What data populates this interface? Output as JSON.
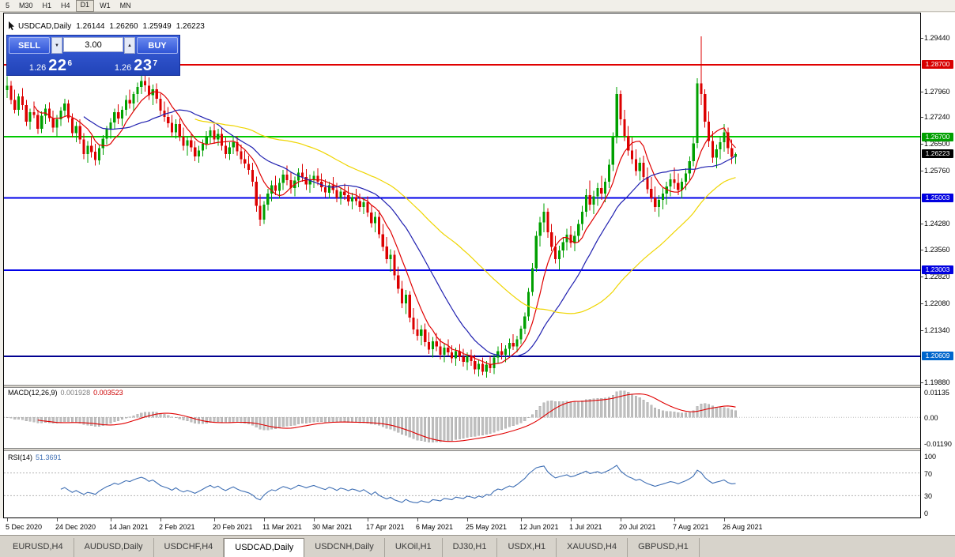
{
  "toolbar": {
    "timeframes": [
      {
        "label": "5"
      },
      {
        "label": "M30"
      },
      {
        "label": "H1"
      },
      {
        "label": "H4"
      },
      {
        "label": "D1",
        "active": true
      },
      {
        "label": "W1"
      },
      {
        "label": "MN"
      }
    ]
  },
  "chart_title": {
    "symbol": "USDCAD,Daily",
    "open": "1.26144",
    "high": "1.26260",
    "low": "1.25949",
    "close": "1.26223"
  },
  "trade_panel": {
    "sell_label": "SELL",
    "buy_label": "BUY",
    "lots": "3.00",
    "lot_down_icon": "▼",
    "lot_up_icon": "▲",
    "sell_price": {
      "prefix": "1.26",
      "big": "22",
      "sup": "6"
    },
    "buy_price": {
      "prefix": "1.26",
      "big": "23",
      "sup": "7"
    }
  },
  "macd": {
    "label": "MACD(12,26,9)",
    "value_main": "0.001928",
    "value_signal": "0.003523",
    "scale": {
      "top": "0.01135",
      "zero": "0.00",
      "bottom": "-0.01190"
    },
    "range": {
      "max": 0.01135,
      "min": -0.0119
    },
    "colors": {
      "histogram": "#bfbfbf",
      "histogram_edge": "#a6a6a6",
      "signal": "#e00000"
    },
    "params": {
      "fast": 12,
      "slow": 26,
      "signal": 9
    }
  },
  "rsi": {
    "label": "RSI(14)",
    "value": "51.3691",
    "period": 14,
    "scale": [
      "100",
      "70",
      "30",
      "0"
    ],
    "levels": [
      70,
      30
    ],
    "color": "#3f6fb4"
  },
  "tabs": {
    "items": [
      "EURUSD,H4",
      "AUDUSD,Daily",
      "USDCHF,H4",
      "USDCAD,Daily",
      "USDCNH,Daily",
      "UKOil,H1",
      "DJ30,H1",
      "USDX,H1",
      "XAUUSD,H4",
      "GBPUSD,H1"
    ],
    "active_index": 3
  },
  "chart_data": {
    "type": "candlestick",
    "symbol": "USDCAD",
    "timeframe": "Daily",
    "colors": {
      "up": "#00a000",
      "down": "#dc0000",
      "background": "#ffffff"
    },
    "y_axis": {
      "min": 1.1982,
      "max": 1.3012,
      "ticks": [
        "1.29440",
        "1.27960",
        "1.27240",
        "1.26500",
        "1.25760",
        "1.24280",
        "1.23560",
        "1.22820",
        "1.22080",
        "1.21340",
        "1.19880"
      ]
    },
    "price_badges": [
      {
        "text": "1.28700",
        "price": 1.287,
        "color": "#d80000"
      },
      {
        "text": "1.26700",
        "price": 1.267,
        "color": "#00a000"
      },
      {
        "text": "1.26223",
        "price": 1.26223,
        "color": "#000000"
      },
      {
        "text": "1.25003",
        "price": 1.25003,
        "color": "#0000e0"
      },
      {
        "text": "1.23003",
        "price": 1.23003,
        "color": "#0000e0"
      },
      {
        "text": "1.20609",
        "price": 1.20609,
        "color": "#0066cc"
      }
    ],
    "h_lines": [
      {
        "price": 1.287,
        "color": "#e00000",
        "width": 2
      },
      {
        "price": 1.267,
        "color": "#00c800",
        "width": 2
      },
      {
        "price": 1.25003,
        "color": "#0000e8",
        "width": 2
      },
      {
        "price": 1.23003,
        "color": "#0000e8",
        "width": 2
      },
      {
        "price": 1.20609,
        "color": "#000090",
        "width": 2
      }
    ],
    "moving_averages": [
      {
        "period": 8,
        "color": "#e00000"
      },
      {
        "period": 21,
        "color": "#2020b0"
      },
      {
        "period": 50,
        "color": "#efd500"
      }
    ],
    "x_labels": [
      {
        "text": "5 Dec 2020",
        "bar": 0
      },
      {
        "text": "24 Dec 2020",
        "bar": 13
      },
      {
        "text": "14 Jan 2021",
        "bar": 27
      },
      {
        "text": "2 Feb 2021",
        "bar": 40
      },
      {
        "text": "20 Feb 2021",
        "bar": 54
      },
      {
        "text": "11 Mar 2021",
        "bar": 67
      },
      {
        "text": "30 Mar 2021",
        "bar": 80
      },
      {
        "text": "17 Apr 2021",
        "bar": 94
      },
      {
        "text": "6 May 2021",
        "bar": 107
      },
      {
        "text": "25 May 2021",
        "bar": 120
      },
      {
        "text": "12 Jun 2021",
        "bar": 134
      },
      {
        "text": "1 Jul 2021",
        "bar": 147
      },
      {
        "text": "20 Jul 2021",
        "bar": 160
      },
      {
        "text": "7 Aug 2021",
        "bar": 174
      },
      {
        "text": "26 Aug 2021",
        "bar": 187
      }
    ],
    "candles": [
      [
        1.28,
        1.2838,
        1.2778,
        1.2812
      ],
      [
        1.2812,
        1.2825,
        1.276,
        1.2772
      ],
      [
        1.2772,
        1.28,
        1.2735,
        1.2745
      ],
      [
        1.2745,
        1.279,
        1.2728,
        1.2782
      ],
      [
        1.2782,
        1.2805,
        1.2745,
        1.2758
      ],
      [
        1.2758,
        1.2772,
        1.27,
        1.2712
      ],
      [
        1.2712,
        1.2748,
        1.269,
        1.2738
      ],
      [
        1.2738,
        1.2768,
        1.2722,
        1.273
      ],
      [
        1.273,
        1.2745,
        1.2678,
        1.2692
      ],
      [
        1.2692,
        1.274,
        1.268,
        1.2728
      ],
      [
        1.2728,
        1.276,
        1.2705,
        1.2748
      ],
      [
        1.2748,
        1.2765,
        1.2712,
        1.2722
      ],
      [
        1.2722,
        1.2742,
        1.2682,
        1.2695
      ],
      [
        1.2695,
        1.273,
        1.267,
        1.2718
      ],
      [
        1.2718,
        1.2752,
        1.27,
        1.2742
      ],
      [
        1.2742,
        1.2775,
        1.2725,
        1.2762
      ],
      [
        1.2762,
        1.2772,
        1.271,
        1.2722
      ],
      [
        1.2722,
        1.2735,
        1.2668,
        1.268
      ],
      [
        1.268,
        1.2712,
        1.2655,
        1.27
      ],
      [
        1.27,
        1.2718,
        1.265,
        1.2662
      ],
      [
        1.2662,
        1.268,
        1.2608,
        1.2622
      ],
      [
        1.2622,
        1.2658,
        1.2598,
        1.2645
      ],
      [
        1.2645,
        1.2672,
        1.2612,
        1.2628
      ],
      [
        1.2628,
        1.265,
        1.259,
        1.2605
      ],
      [
        1.2605,
        1.2648,
        1.2592,
        1.2638
      ],
      [
        1.2638,
        1.2675,
        1.262,
        1.2665
      ],
      [
        1.2665,
        1.27,
        1.2648,
        1.2692
      ],
      [
        1.2692,
        1.2722,
        1.2665,
        1.271
      ],
      [
        1.271,
        1.2748,
        1.2692,
        1.2738
      ],
      [
        1.2738,
        1.276,
        1.2705,
        1.272
      ],
      [
        1.272,
        1.2755,
        1.27,
        1.2745
      ],
      [
        1.2745,
        1.2785,
        1.2728,
        1.2772
      ],
      [
        1.2772,
        1.28,
        1.2748,
        1.2762
      ],
      [
        1.2762,
        1.2795,
        1.274,
        1.2788
      ],
      [
        1.2788,
        1.282,
        1.2765,
        1.2808
      ],
      [
        1.2808,
        1.284,
        1.2788,
        1.2825
      ],
      [
        1.2825,
        1.2848,
        1.2795,
        1.2812
      ],
      [
        1.2812,
        1.2835,
        1.2772,
        1.2785
      ],
      [
        1.2785,
        1.2815,
        1.2758,
        1.2802
      ],
      [
        1.2802,
        1.2818,
        1.2762,
        1.2775
      ],
      [
        1.2775,
        1.279,
        1.273,
        1.2742
      ],
      [
        1.2742,
        1.2768,
        1.2712,
        1.2725
      ],
      [
        1.2725,
        1.2752,
        1.2695,
        1.2708
      ],
      [
        1.2708,
        1.273,
        1.267,
        1.2682
      ],
      [
        1.2682,
        1.2718,
        1.2665,
        1.2705
      ],
      [
        1.2705,
        1.272,
        1.2658,
        1.267
      ],
      [
        1.267,
        1.2695,
        1.2632,
        1.2645
      ],
      [
        1.2645,
        1.2672,
        1.2618,
        1.266
      ],
      [
        1.266,
        1.268,
        1.2628,
        1.264
      ],
      [
        1.264,
        1.2658,
        1.2602,
        1.2615
      ],
      [
        1.2615,
        1.2645,
        1.2598,
        1.2632
      ],
      [
        1.2632,
        1.2662,
        1.2615,
        1.265
      ],
      [
        1.265,
        1.2685,
        1.2635,
        1.2672
      ],
      [
        1.2672,
        1.2698,
        1.2652,
        1.2688
      ],
      [
        1.2688,
        1.2705,
        1.265,
        1.2662
      ],
      [
        1.2662,
        1.2692,
        1.2645,
        1.2678
      ],
      [
        1.2678,
        1.2695,
        1.2632,
        1.2645
      ],
      [
        1.2645,
        1.2668,
        1.261,
        1.2622
      ],
      [
        1.2622,
        1.2655,
        1.2605,
        1.264
      ],
      [
        1.264,
        1.2668,
        1.2622,
        1.2655
      ],
      [
        1.2655,
        1.2672,
        1.2618,
        1.263
      ],
      [
        1.263,
        1.2648,
        1.2595,
        1.2608
      ],
      [
        1.2608,
        1.2632,
        1.2582,
        1.2595
      ],
      [
        1.2595,
        1.2618,
        1.2565,
        1.2578
      ],
      [
        1.2578,
        1.2598,
        1.2532,
        1.2545
      ],
      [
        1.2545,
        1.256,
        1.2462,
        1.2478
      ],
      [
        1.2478,
        1.251,
        1.2422,
        1.244
      ],
      [
        1.244,
        1.2492,
        1.2428,
        1.2482
      ],
      [
        1.2482,
        1.2525,
        1.2465,
        1.2512
      ],
      [
        1.2512,
        1.2548,
        1.249,
        1.2535
      ],
      [
        1.2535,
        1.2562,
        1.2508,
        1.252
      ],
      [
        1.252,
        1.2555,
        1.2498,
        1.2542
      ],
      [
        1.2542,
        1.2578,
        1.2522,
        1.2565
      ],
      [
        1.2565,
        1.259,
        1.2535,
        1.255
      ],
      [
        1.255,
        1.2572,
        1.2512,
        1.2528
      ],
      [
        1.2528,
        1.256,
        1.2505,
        1.2548
      ],
      [
        1.2548,
        1.2582,
        1.253,
        1.257
      ],
      [
        1.257,
        1.2595,
        1.2545,
        1.2558
      ],
      [
        1.2558,
        1.258,
        1.2522,
        1.2538
      ],
      [
        1.2538,
        1.2565,
        1.2515,
        1.2552
      ],
      [
        1.2552,
        1.2575,
        1.2528,
        1.2562
      ],
      [
        1.2562,
        1.2582,
        1.2535,
        1.2545
      ],
      [
        1.2545,
        1.2568,
        1.2518,
        1.253
      ],
      [
        1.253,
        1.2552,
        1.2502,
        1.2515
      ],
      [
        1.2515,
        1.2545,
        1.2498,
        1.2535
      ],
      [
        1.2535,
        1.2558,
        1.2512,
        1.2522
      ],
      [
        1.2522,
        1.2542,
        1.2488,
        1.25
      ],
      [
        1.25,
        1.2528,
        1.2482,
        1.2518
      ],
      [
        1.2518,
        1.254,
        1.2495,
        1.2508
      ],
      [
        1.2508,
        1.2532,
        1.2478,
        1.249
      ],
      [
        1.249,
        1.2515,
        1.2468,
        1.2502
      ],
      [
        1.2502,
        1.2525,
        1.248,
        1.2492
      ],
      [
        1.2492,
        1.2512,
        1.2462,
        1.2475
      ],
      [
        1.2475,
        1.2502,
        1.2455,
        1.2488
      ],
      [
        1.2488,
        1.2505,
        1.2448,
        1.246
      ],
      [
        1.246,
        1.2482,
        1.2418,
        1.243
      ],
      [
        1.243,
        1.2462,
        1.2405,
        1.2448
      ],
      [
        1.2448,
        1.2465,
        1.2388,
        1.24
      ],
      [
        1.24,
        1.2428,
        1.2352,
        1.2365
      ],
      [
        1.2365,
        1.2392,
        1.2318,
        1.233
      ],
      [
        1.233,
        1.2358,
        1.2295,
        1.2342
      ],
      [
        1.2342,
        1.2355,
        1.2272,
        1.2285
      ],
      [
        1.2285,
        1.231,
        1.2235,
        1.2248
      ],
      [
        1.2248,
        1.227,
        1.2195,
        1.2208
      ],
      [
        1.2208,
        1.2245,
        1.2178,
        1.2232
      ],
      [
        1.2232,
        1.2242,
        1.2155,
        1.2168
      ],
      [
        1.2168,
        1.2195,
        1.2122,
        1.2135
      ],
      [
        1.2135,
        1.2165,
        1.2105,
        1.2118
      ],
      [
        1.2118,
        1.2148,
        1.2092,
        1.2135
      ],
      [
        1.2135,
        1.2152,
        1.2088,
        1.21
      ],
      [
        1.21,
        1.2128,
        1.2068,
        1.208
      ],
      [
        1.208,
        1.2115,
        1.2058,
        1.2102
      ],
      [
        1.2102,
        1.2125,
        1.2075,
        1.2088
      ],
      [
        1.2088,
        1.211,
        1.2052,
        1.2065
      ],
      [
        1.2065,
        1.2098,
        1.2045,
        1.2085
      ],
      [
        1.2085,
        1.2108,
        1.2062,
        1.2072
      ],
      [
        1.2072,
        1.2092,
        1.2042,
        1.2055
      ],
      [
        1.2055,
        1.2085,
        1.2035,
        1.2075
      ],
      [
        1.2075,
        1.2095,
        1.2048,
        1.206
      ],
      [
        1.206,
        1.2082,
        1.2032,
        1.2045
      ],
      [
        1.2045,
        1.2072,
        1.2022,
        1.2062
      ],
      [
        1.2062,
        1.208,
        1.2035,
        1.2048
      ],
      [
        1.2048,
        1.2065,
        1.2012,
        1.2025
      ],
      [
        1.2025,
        1.2052,
        1.2005,
        1.204
      ],
      [
        1.204,
        1.2058,
        1.2008,
        1.2018
      ],
      [
        1.2018,
        1.2048,
        1.2002,
        1.2038
      ],
      [
        1.2038,
        1.2062,
        1.2015,
        1.2028
      ],
      [
        1.2028,
        1.2068,
        1.2012,
        1.2058
      ],
      [
        1.2058,
        1.2088,
        1.2042,
        1.2075
      ],
      [
        1.2075,
        1.2098,
        1.2052,
        1.2065
      ],
      [
        1.2065,
        1.2092,
        1.2045,
        1.2082
      ],
      [
        1.2082,
        1.211,
        1.2062,
        1.2098
      ],
      [
        1.2098,
        1.2122,
        1.2078,
        1.2088
      ],
      [
        1.2088,
        1.2118,
        1.2072,
        1.2108
      ],
      [
        1.2108,
        1.2145,
        1.2095,
        1.2138
      ],
      [
        1.2138,
        1.2182,
        1.2122,
        1.2172
      ],
      [
        1.2172,
        1.225,
        1.216,
        1.224
      ],
      [
        1.224,
        1.232,
        1.2228,
        1.2305
      ],
      [
        1.2305,
        1.2408,
        1.2295,
        1.2395
      ],
      [
        1.2395,
        1.2448,
        1.2365,
        1.2432
      ],
      [
        1.2432,
        1.2485,
        1.2405,
        1.2462
      ],
      [
        1.2462,
        1.2472,
        1.239,
        1.2405
      ],
      [
        1.2405,
        1.2428,
        1.2352,
        1.2365
      ],
      [
        1.2365,
        1.2395,
        1.2318,
        1.233
      ],
      [
        1.233,
        1.2368,
        1.2302,
        1.2355
      ],
      [
        1.2355,
        1.2392,
        1.2335,
        1.2378
      ],
      [
        1.2378,
        1.2415,
        1.2355,
        1.2398
      ],
      [
        1.2398,
        1.2422,
        1.2362,
        1.2375
      ],
      [
        1.2375,
        1.2408,
        1.2352,
        1.2395
      ],
      [
        1.2395,
        1.244,
        1.2378,
        1.2428
      ],
      [
        1.2428,
        1.2478,
        1.241,
        1.2462
      ],
      [
        1.2462,
        1.2525,
        1.2448,
        1.2508
      ],
      [
        1.2508,
        1.2548,
        1.2465,
        1.2482
      ],
      [
        1.2482,
        1.252,
        1.2455,
        1.2505
      ],
      [
        1.2505,
        1.2542,
        1.2478,
        1.2528
      ],
      [
        1.2528,
        1.2562,
        1.2495,
        1.2512
      ],
      [
        1.2512,
        1.2555,
        1.2488,
        1.2545
      ],
      [
        1.2545,
        1.2608,
        1.2528,
        1.2592
      ],
      [
        1.2592,
        1.2682,
        1.2575,
        1.2668
      ],
      [
        1.2668,
        1.2808,
        1.2652,
        1.2788
      ],
      [
        1.2788,
        1.2798,
        1.2702,
        1.2718
      ],
      [
        1.2718,
        1.2745,
        1.2658,
        1.2672
      ],
      [
        1.2672,
        1.27,
        1.2618,
        1.2632
      ],
      [
        1.2632,
        1.2668,
        1.2595,
        1.2608
      ],
      [
        1.2608,
        1.2635,
        1.2562,
        1.2575
      ],
      [
        1.2575,
        1.2612,
        1.2548,
        1.2598
      ],
      [
        1.2598,
        1.2618,
        1.2545,
        1.2558
      ],
      [
        1.2558,
        1.2585,
        1.2512,
        1.2525
      ],
      [
        1.2525,
        1.2558,
        1.2488,
        1.25
      ],
      [
        1.25,
        1.2532,
        1.2462,
        1.2475
      ],
      [
        1.2475,
        1.2508,
        1.2448,
        1.2495
      ],
      [
        1.2495,
        1.2528,
        1.2468,
        1.2512
      ],
      [
        1.2512,
        1.2545,
        1.2482,
        1.2532
      ],
      [
        1.2532,
        1.2568,
        1.2505,
        1.2552
      ],
      [
        1.2552,
        1.2585,
        1.2525,
        1.2542
      ],
      [
        1.2542,
        1.2568,
        1.2508,
        1.2522
      ],
      [
        1.2522,
        1.2555,
        1.2498,
        1.2545
      ],
      [
        1.2545,
        1.2582,
        1.2522,
        1.2568
      ],
      [
        1.2568,
        1.2615,
        1.2548,
        1.2602
      ],
      [
        1.2602,
        1.2668,
        1.2588,
        1.2652
      ],
      [
        1.2652,
        1.2832,
        1.2638,
        1.2818
      ],
      [
        1.2818,
        1.2948,
        1.2758,
        1.2788
      ],
      [
        1.2788,
        1.2802,
        1.2695,
        1.2712
      ],
      [
        1.2712,
        1.274,
        1.2642,
        1.2658
      ],
      [
        1.2658,
        1.2685,
        1.2598,
        1.2612
      ],
      [
        1.2612,
        1.2648,
        1.2582,
        1.2635
      ],
      [
        1.2635,
        1.2672,
        1.2608,
        1.2655
      ],
      [
        1.2655,
        1.2705,
        1.2628,
        1.2682
      ],
      [
        1.2682,
        1.2695,
        1.2622,
        1.2638
      ],
      [
        1.2638,
        1.2662,
        1.2595,
        1.2614
      ],
      [
        1.26144,
        1.2626,
        1.25949,
        1.26223
      ]
    ]
  }
}
